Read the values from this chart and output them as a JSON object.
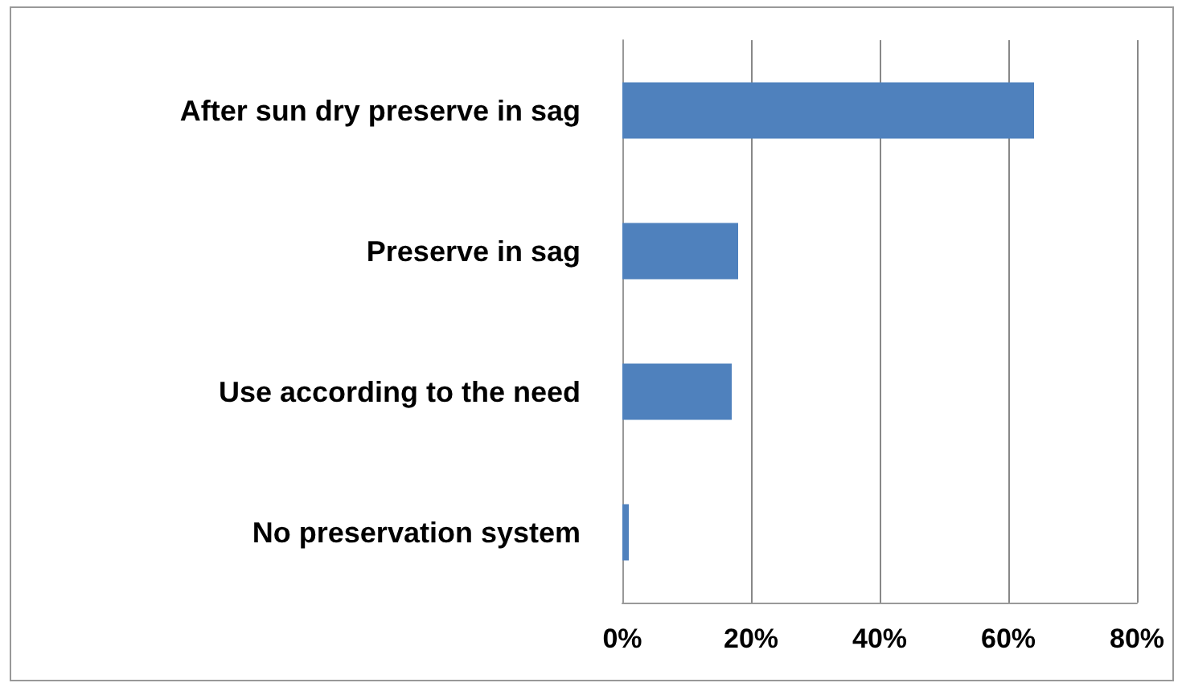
{
  "chart_data": {
    "type": "bar",
    "orientation": "horizontal",
    "categories": [
      "After sun dry preserve in sag",
      "Preserve in sag",
      "Use according to the need",
      "No preservation system"
    ],
    "values": [
      64,
      18,
      17,
      1
    ],
    "color": "#4f81bd",
    "xlim": [
      0,
      80
    ],
    "xticks": [
      {
        "value": 0,
        "label": "0%"
      },
      {
        "value": 20,
        "label": "20%"
      },
      {
        "value": 40,
        "label": "40%"
      },
      {
        "value": 60,
        "label": "60%"
      },
      {
        "value": 80,
        "label": "80%"
      }
    ],
    "grid": "x"
  }
}
